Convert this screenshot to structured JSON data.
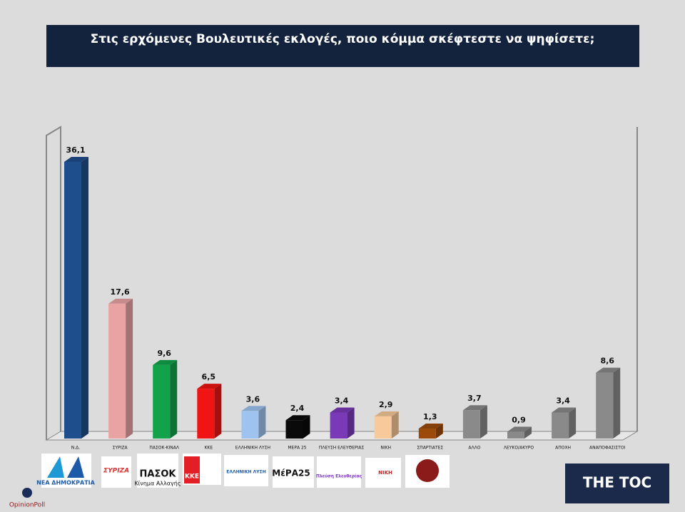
{
  "chart_data": {
    "type": "bar3d",
    "title": "Στις ερχόμενες Βουλευτικές εκλογές, ποιο κόμμα σκέφτεστε να ψηφίσετε;",
    "categories": [
      "Ν.Δ.",
      "ΣΥΡΙΖΑ",
      "ΠΑΣΟΚ-ΚΙΝΑΛ",
      "ΚΚΕ",
      "ΕΛΛΗΝΙΚΗ ΛΥΣΗ",
      "ΜΕΡΑ 25",
      "ΠΛΕΥΣΗ ΕΛΕΥΘΕΡΙΑΣ",
      "ΝΙΚΗ",
      "ΣΠΑΡΤΙΑΤΕΣ",
      "ΑΛΛΟ",
      "ΛΕΥΚΟ/ΑΚΥΡΟ",
      "ΑΠΟΧΗ",
      "ΑΝΑΠΟΦΑΣΙΣΤΟΙ"
    ],
    "values": [
      36.1,
      17.6,
      9.6,
      6.5,
      3.6,
      2.4,
      3.4,
      2.9,
      1.3,
      3.7,
      0.9,
      3.4,
      8.6
    ],
    "value_labels": [
      "36,1",
      "17,6",
      "9,6",
      "6,5",
      "3,6",
      "2,4",
      "3,4",
      "2,9",
      "1,3",
      "3,7",
      "0,9",
      "3,4",
      "8,6"
    ],
    "colors": [
      "#1f4e8c",
      "#eaa3a3",
      "#12a34a",
      "#f01414",
      "#9ec3ef",
      "#0a0a0a",
      "#7a3ab8",
      "#f8c99a",
      "#9c4a0c",
      "#8a8a8a",
      "#8a8a8a",
      "#8a8a8a",
      "#8a8a8a"
    ]
  },
  "logos": [
    "ΝΕΑ ΔΗΜΟΚΡΑΤΙΑ",
    "ΣΥΡΙΖΑ",
    "ΠΑΣΟΚ",
    "Κίνημα Αλλαγής",
    "ΚΚΕ",
    "ΕΛΛΗΝΙΚΗ ΛΥΣΗ",
    "ΜέΡΑ25",
    "Πλεύση Ελευθερίας",
    "ΝΙΚΗ"
  ],
  "branding": {
    "pollster": "OpinionPoll",
    "outlet": "THE TOC"
  }
}
